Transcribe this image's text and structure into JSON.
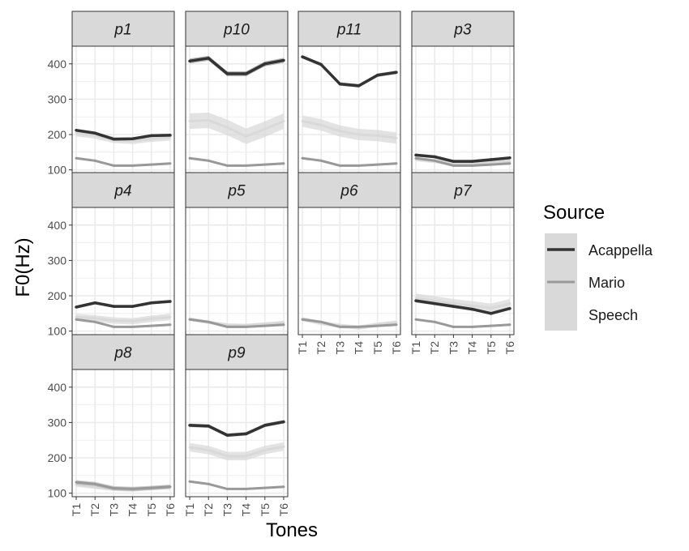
{
  "chart_data": {
    "type": "line",
    "xlabel": "Tones",
    "ylabel": "F0(Hz)",
    "categories": [
      "T1",
      "T2",
      "T3",
      "T4",
      "T5",
      "T6"
    ],
    "ylim": [
      90,
      450
    ],
    "yticks": [
      100,
      200,
      300,
      400
    ],
    "grid": true,
    "legend": {
      "title": "Source",
      "placement": "right",
      "entries": [
        "Acappella",
        "Mario",
        "Speech"
      ]
    },
    "colors": {
      "Acappella": "#333333",
      "Mario": "#999999",
      "Speech": "#d9d9d9",
      "strip_bg": "#d9d9d9",
      "grid": "#ebebeb"
    },
    "facets": [
      {
        "name": "p1",
        "series": [
          {
            "name": "Acappella",
            "values": [
              212,
              204,
              187,
              188,
              197,
              198
            ],
            "band": 4
          },
          {
            "name": "Mario",
            "values": [
              133,
              126,
              112,
              112,
              115,
              118
            ],
            "band": 3
          },
          {
            "name": "Speech",
            "values": [
              204,
              197,
              185,
              182,
              188,
              192
            ],
            "band": 9
          }
        ]
      },
      {
        "name": "p10",
        "series": [
          {
            "name": "Acappella",
            "values": [
              408,
              416,
              372,
              372,
              400,
              410
            ],
            "band": 7
          },
          {
            "name": "Mario",
            "values": [
              133,
              126,
              112,
              112,
              115,
              118
            ],
            "band": 3
          },
          {
            "name": "Speech",
            "values": [
              238,
              240,
              220,
              195,
              215,
              238
            ],
            "band": 22
          }
        ]
      },
      {
        "name": "p11",
        "series": [
          {
            "name": "Acappella",
            "values": [
              420,
              398,
              343,
              338,
              368,
              376
            ],
            "band": 5
          },
          {
            "name": "Mario",
            "values": [
              133,
              126,
              112,
              112,
              115,
              118
            ],
            "band": 3
          },
          {
            "name": "Speech",
            "values": [
              238,
              227,
              210,
              200,
              197,
              190
            ],
            "band": 16
          }
        ]
      },
      {
        "name": "p3",
        "series": [
          {
            "name": "Acappella",
            "values": [
              142,
              137,
              124,
              124,
              129,
              134
            ],
            "band": 4
          },
          {
            "name": "Mario",
            "values": [
              133,
              126,
              112,
              112,
              115,
              118
            ],
            "band": 3
          },
          {
            "name": "Speech",
            "values": [
              130,
              125,
              117,
              118,
              122,
              124
            ],
            "band": 6
          }
        ]
      },
      {
        "name": "p4",
        "series": [
          {
            "name": "Acappella",
            "values": [
              168,
              180,
              170,
              170,
              180,
              184
            ],
            "band": 4
          },
          {
            "name": "Mario",
            "values": [
              133,
              126,
              112,
              112,
              115,
              118
            ],
            "band": 3
          },
          {
            "name": "Speech",
            "values": [
              140,
              136,
              130,
              128,
              135,
              140
            ],
            "band": 9
          }
        ]
      },
      {
        "name": "p5",
        "series": [
          {
            "name": "Acappella",
            "values": [],
            "band": 0
          },
          {
            "name": "Mario",
            "values": [
              133,
              126,
              112,
              112,
              115,
              118
            ],
            "band": 3
          },
          {
            "name": "Speech",
            "values": [
              134,
              125,
              117,
              116,
              120,
              124
            ],
            "band": 5
          }
        ]
      },
      {
        "name": "p6",
        "series": [
          {
            "name": "Acappella",
            "values": [],
            "band": 0
          },
          {
            "name": "Mario",
            "values": [
              133,
              126,
              112,
              112,
              115,
              118
            ],
            "band": 3
          },
          {
            "name": "Speech",
            "values": [
              134,
              123,
              115,
              110,
              118,
              124
            ],
            "band": 6
          }
        ]
      },
      {
        "name": "p7",
        "series": [
          {
            "name": "Acappella",
            "values": [
              186,
              178,
              170,
              162,
              150,
              164
            ],
            "band": 4
          },
          {
            "name": "Mario",
            "values": [
              133,
              126,
              112,
              112,
              115,
              118
            ],
            "band": 3
          },
          {
            "name": "Speech",
            "values": [
              193,
              186,
              178,
              172,
              165,
              178
            ],
            "band": 13
          }
        ]
      },
      {
        "name": "p8",
        "series": [
          {
            "name": "Acappella",
            "values": [],
            "band": 0
          },
          {
            "name": "Mario",
            "values": [
              131,
              126,
              114,
              112,
              115,
              118
            ],
            "band": 6
          },
          {
            "name": "Speech",
            "values": [
              124,
              118,
              112,
              110,
              114,
              118
            ],
            "band": 6
          }
        ]
      },
      {
        "name": "p9",
        "series": [
          {
            "name": "Acappella",
            "values": [
              292,
              290,
              264,
              268,
              292,
              302
            ],
            "band": 5
          },
          {
            "name": "Mario",
            "values": [
              133,
              126,
              112,
              112,
              115,
              118
            ],
            "band": 3
          },
          {
            "name": "Speech",
            "values": [
              230,
              222,
              205,
              205,
              222,
              232
            ],
            "band": 12
          }
        ]
      }
    ]
  }
}
